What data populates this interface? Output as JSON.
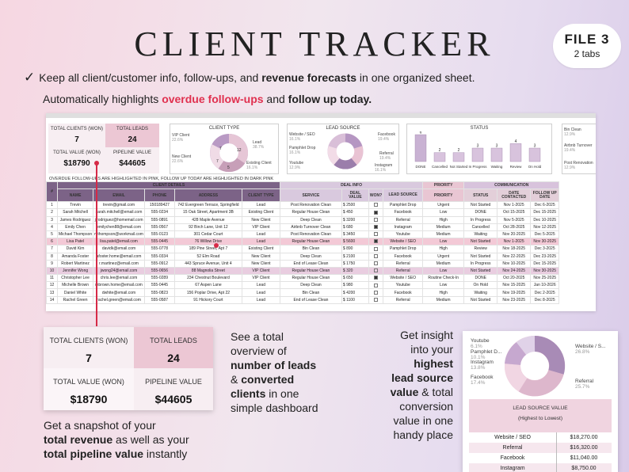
{
  "title": "CLIENT TRACKER",
  "badge": {
    "file": "FILE 3",
    "tabs": "2 tabs"
  },
  "bullet": {
    "check": "✓",
    "pre": "Keep all client/customer info, follow-ups,  and ",
    "bold": "revenue forecasts",
    "post": " in one organized sheet."
  },
  "auto": {
    "pre": "Automatically highlights ",
    "red": "overdue follow-ups",
    "mid": " and ",
    "bold": "follow up today."
  },
  "colors": {
    "accent": "#7c6387",
    "highlight": "#f3c9d6",
    "red": "#d62a47"
  },
  "kpis": {
    "total_clients_label": "TOTAL CLIENTS (WON)",
    "total_clients": "7",
    "total_leads_label": "TOTAL LEADS",
    "total_leads": "24",
    "total_value_label": "TOTAL VALUE (WON)",
    "total_value": "$18790",
    "pipeline_label": "PIPELINE VALUE",
    "pipeline": "$44605"
  },
  "client_type": {
    "title": "CLIENT TYPE",
    "items": [
      {
        "name": "VIP Client",
        "pct": "22.6%"
      },
      {
        "name": "Lead",
        "pct": "38.7%"
      },
      {
        "name": "New Client",
        "pct": "22.6%"
      },
      {
        "name": "Existing Client",
        "pct": "16.1%"
      }
    ],
    "donut_labels": [
      "7",
      "12",
      "5",
      "7"
    ]
  },
  "lead_source_mini": {
    "title": "LEAD SOURCE",
    "items": [
      {
        "name": "Website / SEO",
        "pct": "16.1%"
      },
      {
        "name": "Facebook",
        "pct": "19.4%"
      },
      {
        "name": "Pamphlet Drop",
        "pct": "16.1%"
      },
      {
        "name": "Referral",
        "pct": "19.4%"
      },
      {
        "name": "Youtube",
        "pct": "12.9%"
      },
      {
        "name": "Instagram",
        "pct": "16.1%"
      }
    ]
  },
  "status": {
    "title": "STATUS",
    "bars": [
      {
        "label": "DONE",
        "value": 6
      },
      {
        "label": "Cancelled",
        "value": 2
      },
      {
        "label": "Not Started",
        "value": 2
      },
      {
        "label": "In Progress",
        "value": 3
      },
      {
        "label": "Waiting",
        "value": 3
      },
      {
        "label": "Review",
        "value": 4
      },
      {
        "label": "On Hold",
        "value": 3
      }
    ]
  },
  "right_mini": [
    {
      "name": "Bin Clean",
      "pct": "12.9%"
    },
    {
      "name": "Airbnb Turnover",
      "pct": "19.4%"
    },
    {
      "name": "Post Renovation",
      "pct": "12.9%"
    }
  ],
  "overdue_note": "OVERDUE FOLLOW-UPS ARE HIGHLIGHTED IN PINK, FOLLOW UP TODAY ARE HIGHLIGHTED IN DARK PINK",
  "table": {
    "groups": {
      "client": "CLIENT DETAILS",
      "deal": "DEAL INFO",
      "priority": "PRIORITY",
      "comm": "COMMUNICATION"
    },
    "headers": [
      "#",
      "NAME",
      "EMAIL",
      "PHONE",
      "ADDRESS",
      "CLIENT TYPE",
      "SERVICE",
      "DEAL VALUE",
      "WON?",
      "LEAD SOURCE",
      "PRIORITY",
      "STATUS",
      "DATE CONTACTED",
      "FOLLOW UP DATE"
    ],
    "rows": [
      {
        "n": "1",
        "name": "Trevin",
        "email": "trevin@gmail.com",
        "phone": "150189427",
        "addr": "742 Evergreen Terrace, Springfield",
        "type": "Lead",
        "svc": "Post Renovation Clean",
        "val": "$ 2500",
        "won": false,
        "src": "Pamphlet Drop",
        "pri": "Urgent",
        "st": "Not Started",
        "dc": "Nov 1-2025",
        "fu": "Dec 6-2025"
      },
      {
        "n": "2",
        "name": "Sarah Mitchell",
        "email": "sarah.mitchell@email.com",
        "phone": "555-0234",
        "addr": "15 Oak Street, Apartment 3B",
        "type": "Existing Client",
        "svc": "Regular House Clean",
        "val": "$ 450",
        "won": true,
        "src": "Facebook",
        "pri": "Low",
        "st": "DONE",
        "dc": "Oct 15-2025",
        "fu": "Dec 15-2025"
      },
      {
        "n": "3",
        "name": "James Rodriguez",
        "email": "j.rodriguez@homemail.com",
        "phone": "555-0891",
        "addr": "428 Maple Avenue",
        "type": "New Client",
        "svc": "Deep Clean",
        "val": "$ 3200",
        "won": false,
        "src": "Referral",
        "pri": "High",
        "st": "In Progress",
        "dc": "Nov 5-2025",
        "fu": "Dec 10-2025"
      },
      {
        "n": "4",
        "name": "Emily Chen",
        "email": "emilychen88@email.com",
        "phone": "555-0567",
        "addr": "92 Birch Lane, Unit 12",
        "type": "VIP Client",
        "svc": "Airbnb Turnover Clean",
        "val": "$ 680",
        "won": true,
        "src": "Instagram",
        "pri": "Medium",
        "st": "Cancelled",
        "dc": "Oct 28-2025",
        "fu": "Nov 12-2025"
      },
      {
        "n": "5",
        "name": "Michael Thompson",
        "email": "mthompson@workmail.com",
        "phone": "555-0123",
        "addr": "301 Cedar Court",
        "type": "Lead",
        "svc": "Post Renovation Clean",
        "val": "$ 3450",
        "won": false,
        "src": "Youtube",
        "pri": "Medium",
        "st": "Waiting",
        "dc": "Nov 20-2025",
        "fu": "Dec 5-2025"
      },
      {
        "n": "6",
        "name": "Lisa Patel",
        "email": "lisa.patel@email.com",
        "phone": "555-0445",
        "addr": "76 Willow Drive",
        "type": "Lead",
        "svc": "Regular House Clean",
        "val": "$ 5600",
        "won": true,
        "src": "Website / SEO",
        "pri": "Low",
        "st": "Not Started",
        "dc": "Nov 1-2025",
        "fu": "Nov 30-2025"
      },
      {
        "n": "7",
        "name": "David Kim",
        "email": "davidk@email.com",
        "phone": "555-0778",
        "addr": "189 Pine Street, Apt 7",
        "type": "Existing Client",
        "svc": "Bin Clean",
        "val": "$ 890",
        "won": false,
        "src": "Pamphlet Drop",
        "pri": "High",
        "st": "Review",
        "dc": "Nov 18-2025",
        "fu": "Dec 3-2025"
      },
      {
        "n": "8",
        "name": "Amanda Foster",
        "email": "afoster.home@email.com",
        "phone": "555-0334",
        "addr": "52 Elm Road",
        "type": "New Client",
        "svc": "Deep Clean",
        "val": "$ 2100",
        "won": false,
        "src": "Facebook",
        "pri": "Urgent",
        "st": "Not Started",
        "dc": "Nov 22-2025",
        "fu": "Dec 23-2025"
      },
      {
        "n": "9",
        "name": "Robert Martinez",
        "email": "r.martinez@email.com",
        "phone": "555-0912",
        "addr": "443 Spruce Avenue, Unit 4",
        "type": "New Client",
        "svc": "End of Lease Clean",
        "val": "$ 1750",
        "won": false,
        "src": "Referral",
        "pri": "Medium",
        "st": "In Progress",
        "dc": "Nov 10-2025",
        "fu": "Dec 15-2025"
      },
      {
        "n": "10",
        "name": "Jennifer Wong",
        "email": "jwong24@email.com",
        "phone": "555-0656",
        "addr": "88 Magnolia Street",
        "type": "VIP Client",
        "svc": "Regular House Clean",
        "val": "$ 320",
        "won": false,
        "src": "Referral",
        "pri": "Low",
        "st": "Not Started",
        "dc": "Nov 24-2025",
        "fu": "Nov 30-2025"
      },
      {
        "n": "11",
        "name": "Christopher Lee",
        "email": "chris.lee@email.com",
        "phone": "555-0289",
        "addr": "234 Chestnut Boulevard",
        "type": "VIP Client",
        "svc": "Regular House Clean",
        "val": "$ 650",
        "won": true,
        "src": "Website / SEO",
        "pri": "Routine Check-In",
        "st": "DONE",
        "dc": "Oct 20-2025",
        "fu": "Nov 25-2025"
      },
      {
        "n": "12",
        "name": "Michelle Brown",
        "email": "mbrown.home@email.com",
        "phone": "555-0445",
        "addr": "67 Aspen Lane",
        "type": "Lead",
        "svc": "Deep Clean",
        "val": "$ 980",
        "won": false,
        "src": "Youtube",
        "pri": "Low",
        "st": "On Hold",
        "dc": "Nov 15-2025",
        "fu": "Jan 10-2026"
      },
      {
        "n": "13",
        "name": "Daniel White",
        "email": "dwhite@email.com",
        "phone": "555-0823",
        "addr": "156 Poplar Drive, Apt 22",
        "type": "Lead",
        "svc": "Bin Clean",
        "val": "$ 4200",
        "won": false,
        "src": "Facebook",
        "pri": "High",
        "st": "Waiting",
        "dc": "Nov 19-2025",
        "fu": "Dec 2-2025"
      },
      {
        "n": "14",
        "name": "Rachel Green",
        "email": "rachel.green@email.com",
        "phone": "555-0587",
        "addr": "91 Hickory Court",
        "type": "Lead",
        "svc": "End of Lease Clean",
        "val": "$ 1100",
        "won": false,
        "src": "Referral",
        "pri": "Medium",
        "st": "Not Started",
        "dc": "Nov 23-2025",
        "fu": "Dec 8-2025"
      }
    ]
  },
  "left_caption": {
    "l1": "Get a snapshot of your",
    "b1": "total revenue",
    "t1": " as well as your",
    "b2": "total pipeline value",
    "t2": " instantly"
  },
  "mid_caption": {
    "l1": "See a total",
    "l2": "overview of",
    "b1": "number of leads",
    "t1": "& ",
    "b2": "converted",
    "b3": "clients",
    "t2": " in one",
    "l3": "simple dashboard"
  },
  "right_caption": {
    "l1": "Get insight",
    "l2": "into your",
    "b1": "highest",
    "b2": "lead source",
    "b3": "value",
    "t1": " & total",
    "l3": "conversion",
    "l4": "value in one",
    "l5": "handy place"
  },
  "zoom_right": {
    "donut_labels": [
      {
        "name": "Youtube",
        "pct": "6.1%"
      },
      {
        "name": "Pamphlet D...",
        "pct": "10.1%"
      },
      {
        "name": "Instagram",
        "pct": "13.8%"
      },
      {
        "name": "Website / S...",
        "pct": "26.8%"
      },
      {
        "name": "Facebook",
        "pct": "17.4%"
      },
      {
        "name": "Referral",
        "pct": "25.7%"
      }
    ],
    "value_title": "LEAD SOURCE VALUE",
    "value_subtitle": "(Highest to Lowest)",
    "rows": [
      {
        "name": "Website / SEO",
        "value": "$18,270.00"
      },
      {
        "name": "Referral",
        "value": "$16,320.00"
      },
      {
        "name": "Facebook",
        "value": "$11,040.00"
      },
      {
        "name": "Instagram",
        "value": "$8,750.00"
      }
    ]
  }
}
